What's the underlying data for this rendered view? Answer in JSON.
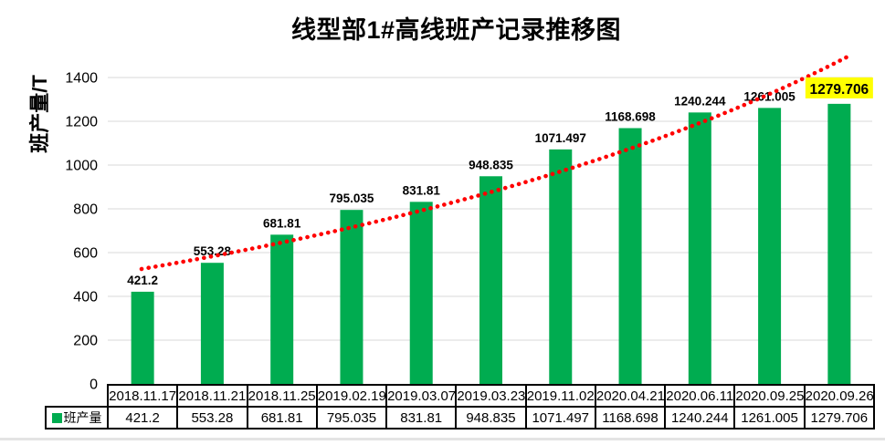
{
  "chart_data": {
    "type": "bar",
    "title": "线型部1#高线班产记录推移图",
    "ylabel": "班产量/T",
    "series_name": "班产量",
    "categories": [
      "2018.11.17",
      "2018.11.21",
      "2018.11.25",
      "2019.02.19",
      "2019.03.07",
      "2019.03.23",
      "2019.11.02",
      "2020.04.21",
      "2020.06.11",
      "2020.09.25",
      "2020.09.26"
    ],
    "values": [
      421.2,
      553.28,
      681.81,
      795.035,
      831.81,
      948.835,
      1071.497,
      1168.698,
      1240.244,
      1261.005,
      1279.706
    ],
    "value_labels": [
      "421.2",
      "553.28",
      "681.81",
      "795.035",
      "831.81",
      "948.835",
      "1071.497",
      "1168.698",
      "1240.244",
      "1261.005",
      "1279.706"
    ],
    "ylim": [
      0,
      1500
    ],
    "yticks": [
      0,
      200,
      400,
      600,
      800,
      1000,
      1200,
      1400
    ],
    "ytick_step": 200,
    "ytick_max": 1400,
    "grid": true,
    "legend_position": "table-left",
    "bar_color": "#00AC50",
    "grid_color": "#D9D9D9",
    "highlight_last": {
      "text_color": "#FF0000",
      "bg_color": "#FFFF00"
    },
    "trendline": {
      "style": "dotted",
      "color": "#FF0000",
      "band_x": [
        0.485,
        6.84,
        10.65
      ],
      "values": [
        525,
        871,
        1500
      ]
    }
  }
}
